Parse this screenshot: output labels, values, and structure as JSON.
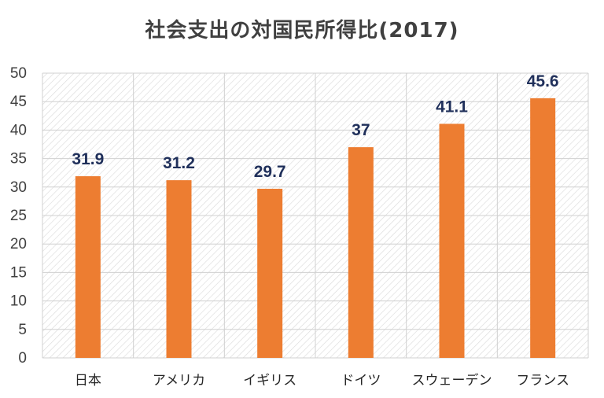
{
  "chart_data": {
    "type": "bar",
    "title": "社会支出の対国民所得比(2017)",
    "categories": [
      "日本",
      "アメリカ",
      "イギリス",
      "ドイツ",
      "スウェーデン",
      "フランス"
    ],
    "values": [
      31.9,
      31.2,
      29.7,
      37,
      41.1,
      45.6
    ],
    "value_labels": [
      "31.9",
      "31.2",
      "29.7",
      "37",
      "41.1",
      "45.6"
    ],
    "ylim": [
      0,
      50
    ],
    "yticks": [
      0,
      5,
      10,
      15,
      20,
      25,
      30,
      35,
      40,
      45,
      50
    ],
    "grid": true,
    "bar_color": "#ed7d31",
    "label_color": "#1f2f5a"
  }
}
